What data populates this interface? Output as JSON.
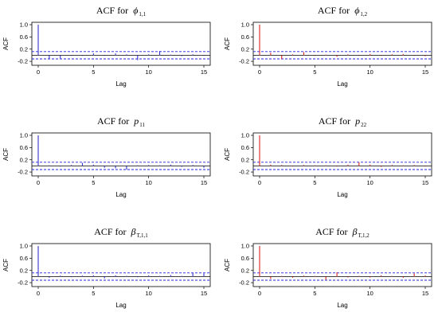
{
  "chart_data": [
    {
      "type": "bar",
      "title": "ACF for ϕ₁,₁",
      "title_main": "ACF for",
      "title_symbol": "ϕ",
      "title_sub": "1,1",
      "color": "#3333cc",
      "xlabel": "Lag",
      "ylabel": "ACF",
      "xlim": [
        0,
        15
      ],
      "ylim": [
        -0.25,
        1.0
      ],
      "xticks": [
        "0",
        "5",
        "10",
        "15"
      ],
      "yticks": [
        "-0.2",
        "0.2",
        "0.6",
        "1.0"
      ],
      "conf_bounds": [
        0.12,
        -0.12
      ],
      "x": [
        0,
        1,
        2,
        3,
        4,
        5,
        6,
        7,
        8,
        9,
        10,
        11,
        12,
        13,
        14,
        15
      ],
      "values": [
        1.0,
        -0.12,
        -0.1,
        -0.02,
        -0.02,
        0.06,
        -0.02,
        0.06,
        0.03,
        -0.16,
        0.03,
        0.14,
        0.02,
        -0.03,
        0.03,
        -0.02
      ]
    },
    {
      "type": "bar",
      "title": "ACF for ϕ₁,₂",
      "title_main": "ACF for",
      "title_symbol": "ϕ",
      "title_sub": "1,2",
      "color": "#dd2222",
      "xlabel": "Lag",
      "ylabel": "ACF",
      "xlim": [
        0,
        15
      ],
      "ylim": [
        -0.25,
        1.0
      ],
      "xticks": [
        "0",
        "5",
        "10",
        "15"
      ],
      "yticks": [
        "-0.2",
        "0.2",
        "0.6",
        "1.0"
      ],
      "conf_bounds": [
        0.12,
        -0.12
      ],
      "x": [
        0,
        1,
        2,
        3,
        4,
        5,
        6,
        7,
        8,
        9,
        10,
        11,
        12,
        13,
        14,
        15
      ],
      "values": [
        1.0,
        0.08,
        -0.12,
        0.03,
        0.1,
        -0.02,
        0.02,
        -0.05,
        0.03,
        -0.02,
        0.04,
        -0.02,
        0.03,
        0.04,
        -0.02,
        -0.03
      ]
    },
    {
      "type": "bar",
      "title": "ACF for p₁₁",
      "title_main": "ACF for",
      "title_symbol": "p",
      "title_sub": "11",
      "color": "#3333cc",
      "xlabel": "Lag",
      "ylabel": "ACF",
      "xlim": [
        0,
        15
      ],
      "ylim": [
        -0.25,
        1.0
      ],
      "xticks": [
        "0",
        "5",
        "10",
        "15"
      ],
      "yticks": [
        "-0.2",
        "0.2",
        "0.6",
        "1.0"
      ],
      "conf_bounds": [
        0.12,
        -0.12
      ],
      "x": [
        0,
        1,
        2,
        3,
        4,
        5,
        6,
        7,
        8,
        9,
        10,
        11,
        12,
        13,
        14,
        15
      ],
      "values": [
        1.0,
        0.02,
        -0.02,
        0.03,
        0.1,
        0.04,
        -0.06,
        -0.08,
        -0.12,
        0.02,
        0.03,
        0.02,
        0.04,
        -0.03,
        0.03,
        -0.06
      ]
    },
    {
      "type": "bar",
      "title": "ACF for p₂₂",
      "title_main": "ACF for",
      "title_symbol": "p",
      "title_sub": "22",
      "color": "#dd2222",
      "xlabel": "Lag",
      "ylabel": "ACF",
      "xlim": [
        0,
        15
      ],
      "ylim": [
        -0.25,
        1.0
      ],
      "xticks": [
        "0",
        "5",
        "10",
        "15"
      ],
      "yticks": [
        "-0.2",
        "0.2",
        "0.6",
        "1.0"
      ],
      "conf_bounds": [
        0.12,
        -0.12
      ],
      "x": [
        0,
        1,
        2,
        3,
        4,
        5,
        6,
        7,
        8,
        9,
        10,
        11,
        12,
        13,
        14,
        15
      ],
      "values": [
        1.0,
        0.04,
        0.03,
        -0.02,
        0.03,
        0.02,
        0.02,
        -0.02,
        0.04,
        0.12,
        0.04,
        -0.03,
        0.03,
        0.02,
        0.03,
        -0.02
      ]
    },
    {
      "type": "bar",
      "title": "ACF for β_T,1,1",
      "title_main": "ACF for",
      "title_symbol": "β",
      "title_sub": "T,1,1",
      "color": "#3333cc",
      "xlabel": "Lag",
      "ylabel": "ACF",
      "xlim": [
        0,
        15
      ],
      "ylim": [
        -0.25,
        1.0
      ],
      "xticks": [
        "0",
        "5",
        "10",
        "15"
      ],
      "yticks": [
        "-0.2",
        "0.2",
        "0.6",
        "1.0"
      ],
      "conf_bounds": [
        0.12,
        -0.12
      ],
      "x": [
        0,
        1,
        2,
        3,
        4,
        5,
        6,
        7,
        8,
        9,
        10,
        11,
        12,
        13,
        14,
        15
      ],
      "values": [
        1.0,
        -0.04,
        0.03,
        -0.02,
        0.03,
        0.04,
        -0.06,
        0.04,
        0.02,
        -0.02,
        0.04,
        0.02,
        0.05,
        0.02,
        0.12,
        0.1
      ]
    },
    {
      "type": "bar",
      "title": "ACF for β_T,1,2",
      "title_main": "ACF for",
      "title_symbol": "β",
      "title_sub": "T,1,2",
      "color": "#dd2222",
      "xlabel": "Lag",
      "ylabel": "ACF",
      "xlim": [
        0,
        15
      ],
      "ylim": [
        -0.25,
        1.0
      ],
      "xticks": [
        "0",
        "5",
        "10",
        "15"
      ],
      "yticks": [
        "-0.2",
        "0.2",
        "0.6",
        "1.0"
      ],
      "conf_bounds": [
        0.12,
        -0.12
      ],
      "x": [
        0,
        1,
        2,
        3,
        4,
        5,
        6,
        7,
        8,
        9,
        10,
        11,
        12,
        13,
        14,
        15
      ],
      "values": [
        1.0,
        -0.08,
        0.02,
        -0.04,
        0.03,
        0.02,
        -0.1,
        0.14,
        -0.03,
        0.02,
        -0.03,
        0.04,
        0.02,
        -0.04,
        0.1,
        0.04
      ]
    }
  ]
}
